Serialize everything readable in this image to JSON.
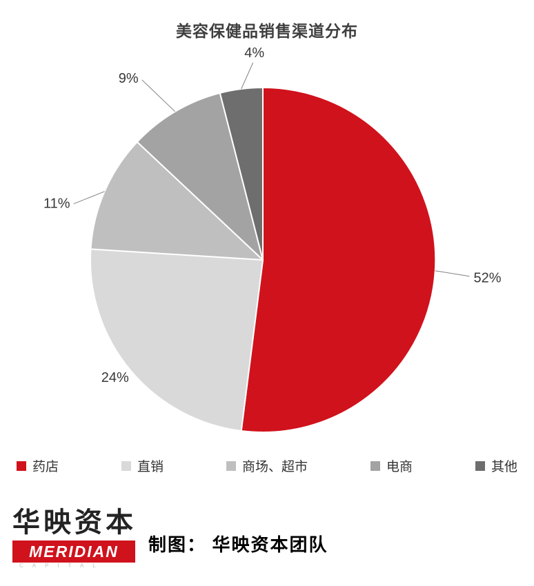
{
  "chart_data": {
    "type": "pie",
    "title": "美容保健品销售渠道分布",
    "start_angle_deg": 0,
    "direction": "clockwise",
    "legend_position": "bottom",
    "grid": false,
    "slices": [
      {
        "label": "药店",
        "value": 52,
        "pct_label": "52%",
        "color": "#d0121c"
      },
      {
        "label": "直销",
        "value": 24,
        "pct_label": "24%",
        "color": "#d9d9d9"
      },
      {
        "label": "商场、超市",
        "value": 11,
        "pct_label": "11%",
        "color": "#bfbfbf"
      },
      {
        "label": "电商",
        "value": 9,
        "pct_label": "9%",
        "color": "#a3a3a3"
      },
      {
        "label": "其他",
        "value": 4,
        "pct_label": "4%",
        "color": "#6e6e6e"
      }
    ]
  },
  "colors": {
    "accent_red": "#d0121c",
    "label_text": "#383838",
    "leader_line": "#808080"
  },
  "footer": {
    "logo_cn": "华映资本",
    "logo_en": "MERIDIAN",
    "logo_sub": "CAPITAL",
    "credit": "制图： 华映资本团队"
  }
}
